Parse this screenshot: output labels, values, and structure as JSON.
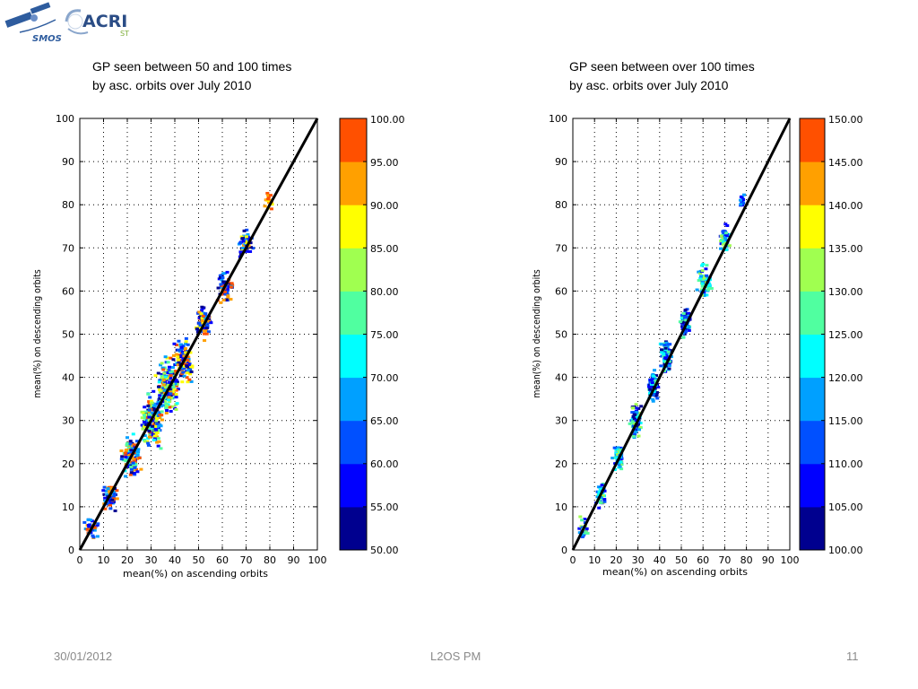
{
  "logos": {
    "smos": "SMOS",
    "acri": "ACRI",
    "acri_sub": "ST"
  },
  "footer": {
    "date": "30/01/2012",
    "center": "L2OS PM",
    "page": "11"
  },
  "panels": [
    {
      "title": "GP seen between 50 and 100 times\nby asc. orbits over July 2010",
      "xlabel": "mean(%) on ascending orbits",
      "ylabel": "mean(%) on descending orbits",
      "colorbar_labels": [
        "100.00",
        "95.00",
        "90.00",
        "85.00",
        "80.00",
        "75.00",
        "70.00",
        "65.00",
        "60.00",
        "55.00",
        "50.00"
      ]
    },
    {
      "title": "GP seen between over 100 times\nby asc. orbits over July 2010",
      "xlabel": "mean(%) on ascending orbits",
      "ylabel": "mean(%) on descending orbits",
      "colorbar_labels": [
        "150.00",
        "145.00",
        "140.00",
        "135.00",
        "130.00",
        "125.00",
        "120.00",
        "115.00",
        "110.00",
        "105.00",
        "100.00"
      ]
    }
  ],
  "chart_data": [
    {
      "type": "scatter",
      "title": "GP seen between 50 and 100 times by asc. orbits over July 2010",
      "xlabel": "mean(%) on ascending orbits",
      "ylabel": "mean(%) on descending orbits",
      "xlim": [
        0,
        100
      ],
      "ylim": [
        0,
        100
      ],
      "xticks": [
        0,
        10,
        20,
        30,
        40,
        50,
        60,
        70,
        80,
        90,
        100
      ],
      "yticks": [
        0,
        10,
        20,
        30,
        40,
        50,
        60,
        70,
        80,
        90,
        100
      ],
      "grid": true,
      "reference_line": {
        "x": [
          0,
          100
        ],
        "y": [
          0,
          100
        ],
        "color": "#000000"
      },
      "color_scale": {
        "min": 50,
        "max": 100,
        "step": 5
      },
      "colormap": [
        "#00008f",
        "#0000ff",
        "#0050ff",
        "#00a0ff",
        "#00ffff",
        "#50ffa0",
        "#a0ff50",
        "#ffff00",
        "#ffa000",
        "#ff5000"
      ],
      "point_clusters": [
        {
          "x": 5,
          "y": 5,
          "x_spread": 4,
          "y_spread": 3,
          "n": 40,
          "colors": [
            1,
            2,
            3,
            8,
            9
          ]
        },
        {
          "x": 13,
          "y": 12,
          "x_spread": 4,
          "y_spread": 4,
          "n": 60,
          "colors": [
            0,
            1,
            2,
            3,
            8,
            9
          ]
        },
        {
          "x": 22,
          "y": 22,
          "x_spread": 5,
          "y_spread": 6,
          "n": 120,
          "colors": [
            0,
            1,
            2,
            3,
            4,
            5,
            8,
            9
          ]
        },
        {
          "x": 30,
          "y": 30,
          "x_spread": 6,
          "y_spread": 8,
          "n": 200,
          "colors": [
            0,
            1,
            2,
            3,
            4,
            5,
            6,
            7,
            8,
            9
          ]
        },
        {
          "x": 37,
          "y": 38,
          "x_spread": 6,
          "y_spread": 8,
          "n": 200,
          "colors": [
            0,
            1,
            2,
            3,
            4,
            5,
            6,
            7,
            8,
            9
          ]
        },
        {
          "x": 44,
          "y": 44,
          "x_spread": 5,
          "y_spread": 6,
          "n": 120,
          "colors": [
            0,
            1,
            2,
            3,
            7,
            8,
            9
          ]
        },
        {
          "x": 52,
          "y": 53,
          "x_spread": 4,
          "y_spread": 5,
          "n": 80,
          "colors": [
            0,
            1,
            2,
            3,
            7,
            8,
            9
          ]
        },
        {
          "x": 61,
          "y": 61,
          "x_spread": 4,
          "y_spread": 5,
          "n": 70,
          "colors": [
            0,
            1,
            2,
            3,
            8,
            9
          ]
        },
        {
          "x": 70,
          "y": 71,
          "x_spread": 4,
          "y_spread": 4,
          "n": 50,
          "colors": [
            0,
            1,
            2,
            3,
            7,
            8
          ]
        },
        {
          "x": 80,
          "y": 81,
          "x_spread": 3,
          "y_spread": 3,
          "n": 15,
          "colors": [
            7,
            8,
            9
          ]
        }
      ]
    },
    {
      "type": "scatter",
      "title": "GP seen between over 100 times by asc. orbits over July 2010",
      "xlabel": "mean(%) on ascending orbits",
      "ylabel": "mean(%) on descending orbits",
      "xlim": [
        0,
        100
      ],
      "ylim": [
        0,
        100
      ],
      "xticks": [
        0,
        10,
        20,
        30,
        40,
        50,
        60,
        70,
        80,
        90,
        100
      ],
      "yticks": [
        0,
        10,
        20,
        30,
        40,
        50,
        60,
        70,
        80,
        90,
        100
      ],
      "grid": true,
      "reference_line": {
        "x": [
          0,
          100
        ],
        "y": [
          0,
          100
        ],
        "color": "#000000"
      },
      "color_scale": {
        "min": 100,
        "max": 150,
        "step": 5
      },
      "colormap": [
        "#00008f",
        "#0000ff",
        "#0050ff",
        "#00a0ff",
        "#00ffff",
        "#50ffa0",
        "#a0ff50",
        "#ffff00",
        "#ffa000",
        "#ff5000"
      ],
      "point_clusters": [
        {
          "x": 5,
          "y": 5,
          "x_spread": 3,
          "y_spread": 3,
          "n": 30,
          "colors": [
            1,
            2,
            3,
            5,
            6
          ]
        },
        {
          "x": 13,
          "y": 13,
          "x_spread": 3,
          "y_spread": 4,
          "n": 50,
          "colors": [
            1,
            2,
            3,
            4,
            5,
            6
          ]
        },
        {
          "x": 21,
          "y": 21,
          "x_spread": 3,
          "y_spread": 4,
          "n": 70,
          "colors": [
            1,
            2,
            3,
            4,
            5,
            6
          ]
        },
        {
          "x": 29,
          "y": 30,
          "x_spread": 3,
          "y_spread": 5,
          "n": 90,
          "colors": [
            0,
            1,
            2,
            3,
            4,
            5,
            6
          ]
        },
        {
          "x": 37,
          "y": 38,
          "x_spread": 3,
          "y_spread": 5,
          "n": 90,
          "colors": [
            0,
            1,
            2,
            3,
            4,
            5
          ]
        },
        {
          "x": 43,
          "y": 45,
          "x_spread": 3,
          "y_spread": 5,
          "n": 90,
          "colors": [
            0,
            1,
            2,
            3,
            4,
            5
          ]
        },
        {
          "x": 52,
          "y": 53,
          "x_spread": 3,
          "y_spread": 5,
          "n": 80,
          "colors": [
            0,
            1,
            2,
            3,
            4,
            5
          ]
        },
        {
          "x": 61,
          "y": 62,
          "x_spread": 4,
          "y_spread": 5,
          "n": 70,
          "colors": [
            1,
            2,
            3,
            4,
            5,
            6
          ]
        },
        {
          "x": 70,
          "y": 72,
          "x_spread": 3,
          "y_spread": 4,
          "n": 50,
          "colors": [
            1,
            2,
            3,
            4,
            5,
            6
          ]
        },
        {
          "x": 78,
          "y": 81,
          "x_spread": 2,
          "y_spread": 3,
          "n": 15,
          "colors": [
            1,
            2,
            3
          ]
        }
      ]
    }
  ]
}
